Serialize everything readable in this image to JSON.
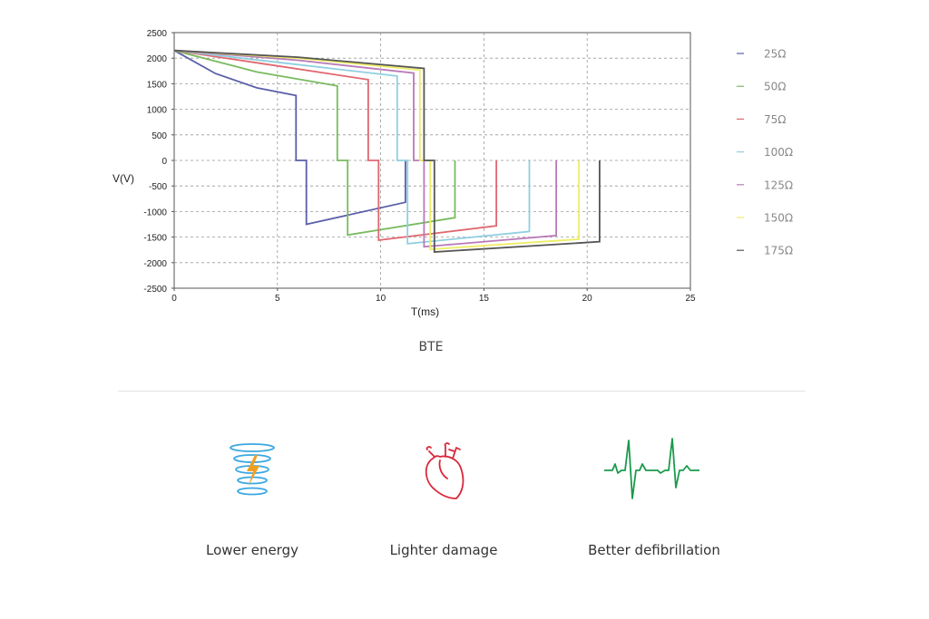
{
  "chart_data": {
    "type": "line",
    "title": "",
    "xlabel": "T(ms)",
    "ylabel": "V(V)",
    "xlim": [
      0,
      25
    ],
    "ylim": [
      -2500,
      2500
    ],
    "x_ticks": [
      0,
      5,
      10,
      15,
      20,
      25
    ],
    "y_ticks": [
      2500,
      2000,
      1500,
      1000,
      500,
      0,
      -500,
      -1000,
      -1500,
      -2000,
      -2500
    ],
    "grid": true,
    "legend_position": "right",
    "series": [
      {
        "name": "25Ω",
        "color": "#5a5fa8",
        "x": [
          0,
          2,
          4,
          5.9,
          5.9,
          6.4,
          6.4,
          11.2,
          11.2
        ],
        "y": [
          2150,
          1700,
          1420,
          1270,
          0,
          0,
          -1250,
          -820,
          0
        ]
      },
      {
        "name": "50Ω",
        "color": "#78bb5f",
        "x": [
          0,
          4,
          7.9,
          7.9,
          8.4,
          8.4,
          13.6,
          13.6
        ],
        "y": [
          2150,
          1730,
          1460,
          0,
          0,
          -1460,
          -1120,
          0
        ]
      },
      {
        "name": "75Ω",
        "color": "#e06870",
        "x": [
          0,
          5,
          9.4,
          9.4,
          9.9,
          9.9,
          15.6,
          15.6
        ],
        "y": [
          2150,
          1850,
          1580,
          0,
          0,
          -1560,
          -1280,
          0
        ]
      },
      {
        "name": "100Ω",
        "color": "#8fcfe0",
        "x": [
          0,
          5,
          10.8,
          10.8,
          11.3,
          11.3,
          17.2,
          17.2
        ],
        "y": [
          2150,
          1920,
          1650,
          0,
          0,
          -1630,
          -1390,
          0
        ]
      },
      {
        "name": "125Ω",
        "color": "#b87ab8",
        "x": [
          0,
          6,
          11.6,
          11.6,
          12.1,
          12.1,
          18.5,
          18.5
        ],
        "y": [
          2150,
          1960,
          1710,
          0,
          0,
          -1690,
          -1470,
          0
        ]
      },
      {
        "name": "150Ω",
        "color": "#eded66",
        "x": [
          0,
          6,
          11.9,
          11.9,
          12.4,
          12.4,
          19.6,
          19.6
        ],
        "y": [
          2150,
          2000,
          1770,
          0,
          0,
          -1740,
          -1540,
          0
        ]
      },
      {
        "name": "175Ω",
        "color": "#555555",
        "x": [
          0,
          6,
          12.1,
          12.1,
          12.6,
          12.6,
          20.6,
          20.6
        ],
        "y": [
          2150,
          2020,
          1800,
          0,
          0,
          -1790,
          -1590,
          0
        ]
      }
    ]
  },
  "caption": "BTE",
  "features": [
    {
      "label": "Lower energy",
      "icon": "energy-coil-icon"
    },
    {
      "label": "Lighter damage",
      "icon": "heart-icon"
    },
    {
      "label": "Better defibrillation",
      "icon": "ecg-icon"
    }
  ],
  "colors": {
    "energy_blue": "#3aa7e0",
    "lightning": "#f0a020",
    "heart_red": "#d9283a",
    "ecg_green": "#1b9a4c"
  }
}
